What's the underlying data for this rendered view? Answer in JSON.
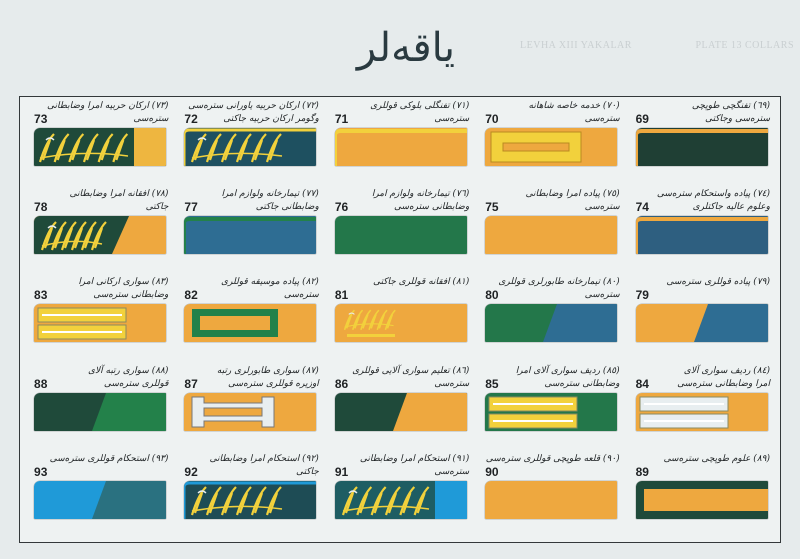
{
  "header": {
    "title": "یاقەلر",
    "ghost_left": "LEVHA XIII YAKALAR",
    "ghost_right": "PLATE 13 COLLARS"
  },
  "colors": {
    "orange": "#eea83f",
    "yellow": "#f2d13c",
    "darkgreen": "#1f4a3a",
    "green": "#23814a",
    "blue": "#2e6d93",
    "teal": "#1e5d63",
    "lightblue": "#1f9ad8",
    "white": "#e8eef0"
  },
  "collars": [
    {
      "num": "69",
      "caption": [
        "(٦٩) تفنگچی طوپچی",
        "سترەسی وجاکتی"
      ],
      "pattern": "bordered",
      "base": "#1f3f34",
      "trim": "#eea83f"
    },
    {
      "num": "70",
      "caption": [
        "(٧٠) خدمە خاصە شاهانە",
        "سترەسی"
      ],
      "pattern": "frame",
      "base": "#eea83f",
      "trim": "#f2d13c"
    },
    {
      "num": "71",
      "caption": [
        "(٧١) تفنگلی بلوکی قوللری",
        "سترەسی"
      ],
      "pattern": "bordered",
      "base": "#eea83f",
      "trim": "#f2d13c"
    },
    {
      "num": "72",
      "caption": [
        "(٧٢) ارکان حربیە یاورانی سترەسی",
        "وگومر ارکان حربیە جاکتی"
      ],
      "pattern": "embroidery-bordered",
      "base": "#1e5060",
      "trim": "#f2d13c"
    },
    {
      "num": "73",
      "caption": [
        "(٧٣) ارکان حربیە امرا وضابطانی",
        "سترەسی"
      ],
      "pattern": "embroidery-half",
      "base": "#1f4a3a",
      "trim": "#f2d13c"
    },
    {
      "num": "74",
      "caption": [
        "(٧٤) پیادە واستحکام سترەسی",
        "وعلوم عالیە جاکتلری"
      ],
      "pattern": "bordered",
      "base": "#2e5f80",
      "trim": "#eea83f"
    },
    {
      "num": "75",
      "caption": [
        "(٧٥) پیادە امرا وضابطانی",
        "سترەسی"
      ],
      "pattern": "solid",
      "base": "#eea83f",
      "trim": "#eea83f"
    },
    {
      "num": "76",
      "caption": [
        "(٧٦) تیمارخانە ولوازم امرا",
        "وضابطانی سترەسی"
      ],
      "pattern": "solid",
      "base": "#23774a",
      "trim": "#23774a"
    },
    {
      "num": "77",
      "caption": [
        "(٧٧) تیمارخانە ولوازم امرا",
        "وضابطانی جاکتی"
      ],
      "pattern": "bordered",
      "base": "#2e6d93",
      "trim": "#23814a"
    },
    {
      "num": "78",
      "caption": [
        "(٧٨) افقانە امرا وضابطانی",
        "جاکتی"
      ],
      "pattern": "embroidery-diagonal",
      "base": "#1f4a3a",
      "trim": "#f2d13c"
    },
    {
      "num": "79",
      "caption": [
        "(٧٩) پیادە قوللری سترەسی",
        ""
      ],
      "pattern": "diagonal",
      "base": "#eea83f",
      "trim": "#2e6d93"
    },
    {
      "num": "80",
      "caption": [
        "(٨٠) تیمارخانە طابورلری قوللری",
        "سترەسی"
      ],
      "pattern": "diagonal",
      "base": "#23774a",
      "trim": "#2e6d93"
    },
    {
      "num": "81",
      "caption": [
        "(٨١) افقانە قوللری جاکتی",
        ""
      ],
      "pattern": "embroidery-small",
      "base": "#eea83f",
      "trim": "#f2d13c"
    },
    {
      "num": "82",
      "caption": [
        "(٨٢) پیادە موسیقە قوللری",
        "سترەسی"
      ],
      "pattern": "inner-rect",
      "base": "#eea83f",
      "trim": "#23814a"
    },
    {
      "num": "83",
      "caption": [
        "(٨٣) سواری ارکانی امرا",
        "وضابطانی سترەسی"
      ],
      "pattern": "stripes",
      "base": "#eea83f",
      "trim": "#f2d13c"
    },
    {
      "num": "84",
      "caption": [
        "(٨٤) ردیف سواری آلای",
        "امرا وضابطانی سترەسی"
      ],
      "pattern": "stripes",
      "base": "#eea83f",
      "trim": "#e8eef0"
    },
    {
      "num": "85",
      "caption": [
        "(٨٥) ردیف سواری آلای امرا",
        "وضابطانی سترەسی"
      ],
      "pattern": "stripes",
      "base": "#23774a",
      "trim": "#f2d13c"
    },
    {
      "num": "86",
      "caption": [
        "(٨٦) تعلیم سواری آلایی قوللری",
        "سترەسی"
      ],
      "pattern": "diagonal",
      "base": "#1f4a3a",
      "trim": "#eea83f"
    },
    {
      "num": "87",
      "caption": [
        "(٨٧) سواری طابورلری رتبە",
        "اوزیرە قوللری سترەسی"
      ],
      "pattern": "frame-white",
      "base": "#eea83f",
      "trim": "#e8eef0"
    },
    {
      "num": "88",
      "caption": [
        "(٨٨) سواری رتبە آلای",
        "قوللری سترەسی"
      ],
      "pattern": "diagonal",
      "base": "#1f4a3a",
      "trim": "#23814a"
    },
    {
      "num": "89",
      "caption": [
        "(٨٩) علوم طوپچی سترەسی",
        ""
      ],
      "pattern": "inner-band",
      "base": "#1f4a3a",
      "trim": "#eea83f"
    },
    {
      "num": "90",
      "caption": [
        "(٩٠) قلعە طوپچی قوللری سترەسی",
        ""
      ],
      "pattern": "solid",
      "base": "#eea83f",
      "trim": "#eea83f"
    },
    {
      "num": "91",
      "caption": [
        "(٩١) استحکام امرا وضابطانی",
        "سترەسی"
      ],
      "pattern": "embroidery-half-right",
      "base": "#1e5d63",
      "trim": "#1f9ad8"
    },
    {
      "num": "92",
      "caption": [
        "(٩٢) استحکام امرا وضابطانی",
        "جاکتی"
      ],
      "pattern": "embroidery-bordered",
      "base": "#1e4c55",
      "trim": "#1f9ad8"
    },
    {
      "num": "93",
      "caption": [
        "(٩٣) استحکام قوللری سترەسی",
        ""
      ],
      "pattern": "diagonal",
      "base": "#1f9ad8",
      "trim": "#2a7180"
    }
  ]
}
